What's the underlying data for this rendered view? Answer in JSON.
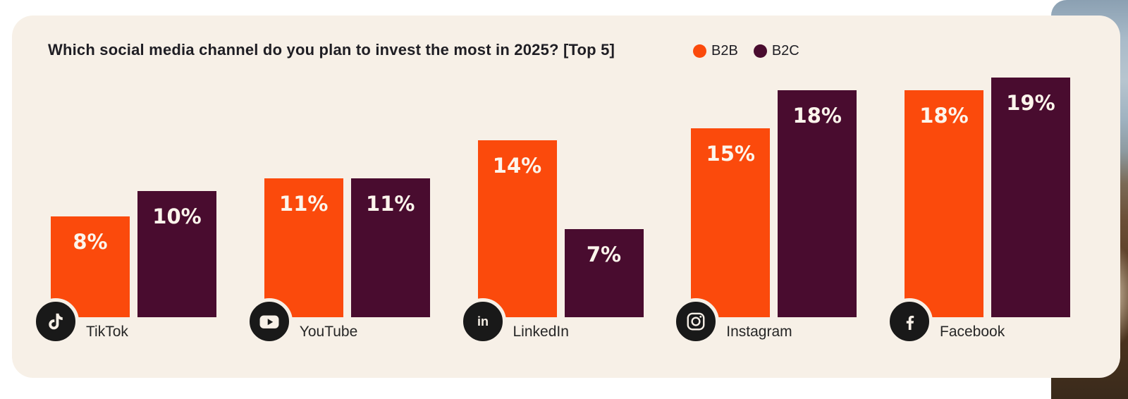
{
  "page": {
    "background_color": "#ffffff"
  },
  "card": {
    "background_color": "#f7f0e7"
  },
  "header": {
    "title": "Which social media channel do you plan to invest the most in 2025? [Top 5]",
    "legend": [
      {
        "label": "B2B",
        "color": "#fb4a0c"
      },
      {
        "label": "B2C",
        "color": "#490c2f"
      }
    ]
  },
  "chart_data": {
    "type": "bar",
    "title": "Which social media channel do you plan to invest the most in 2025? [Top 5]",
    "categories": [
      "TikTok",
      "YouTube",
      "LinkedIn",
      "Instagram",
      "Facebook"
    ],
    "series": [
      {
        "name": "B2B",
        "color": "#fb4a0c",
        "values": [
          8,
          11,
          14,
          15,
          18
        ]
      },
      {
        "name": "B2C",
        "color": "#490c2f",
        "values": [
          10,
          11,
          7,
          18,
          19
        ]
      }
    ],
    "value_suffix": "%",
    "value_labels_shown": true,
    "legend_position": "top-right",
    "grid": false,
    "axes_visible": false,
    "icons": [
      "tiktok-icon",
      "youtube-icon",
      "linkedin-icon",
      "instagram-icon",
      "facebook-icon"
    ]
  },
  "background_photo": {
    "description": "cropped photo at right edge: denim jacket above, sneaker below"
  }
}
